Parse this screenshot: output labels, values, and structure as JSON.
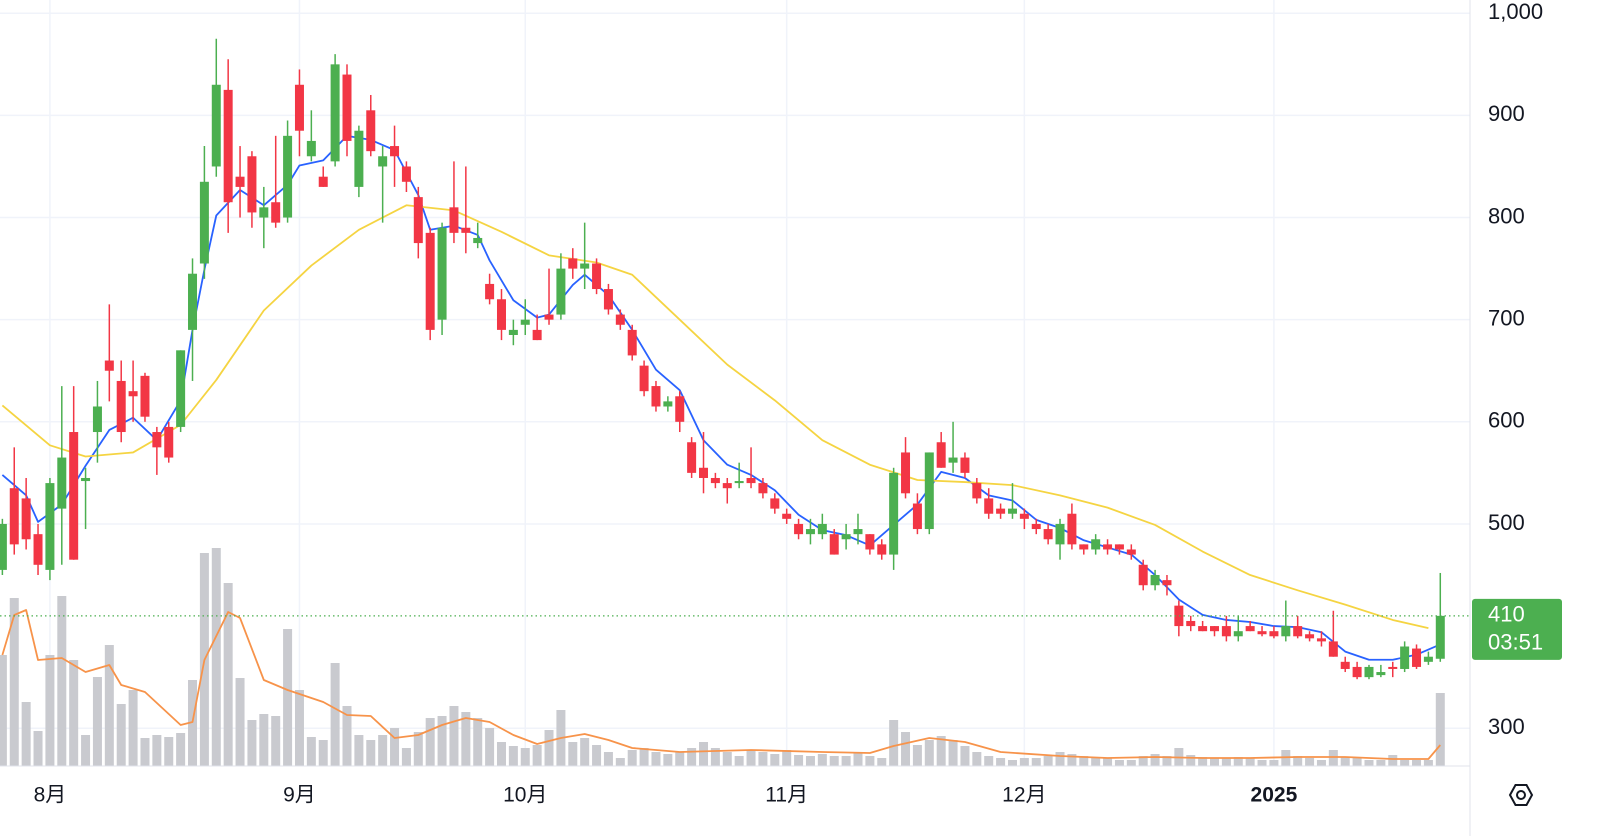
{
  "chart_data": {
    "type": "candlestick",
    "xlim": [
      -0.2,
      123.5
    ],
    "ylim": [
      263,
      1013
    ],
    "yticks": [
      300,
      500,
      600,
      700,
      800,
      900,
      {
        "value": 1000,
        "label": "1,000"
      }
    ],
    "xticks": [
      {
        "value": 4,
        "label": "8月"
      },
      {
        "value": 25,
        "label": "9月"
      },
      {
        "value": 44,
        "label": "10月"
      },
      {
        "value": 66,
        "label": "11月"
      },
      {
        "value": 86,
        "label": "12月"
      },
      {
        "value": 107,
        "label": "2025",
        "bold": true
      }
    ],
    "grid": true,
    "up_color": "#4caf50",
    "down_color": "#f23645",
    "open": [
      455,
      535,
      525,
      490,
      455,
      515,
      590,
      542,
      590,
      660,
      640,
      630,
      645,
      590,
      595,
      595,
      690,
      755,
      850,
      925,
      840,
      860,
      800,
      815,
      800,
      930,
      860,
      840,
      855,
      940,
      830,
      905,
      850,
      870,
      850,
      820,
      785,
      700,
      810,
      790,
      775,
      735,
      720,
      685,
      695,
      690,
      705,
      705,
      760,
      750,
      755,
      730,
      705,
      690,
      655,
      635,
      615,
      625,
      580,
      555,
      545,
      540,
      540,
      545,
      540,
      525,
      510,
      500,
      490,
      490,
      490,
      485,
      490,
      490,
      480,
      470,
      570,
      520,
      495,
      580,
      560,
      565,
      540,
      525,
      515,
      510,
      510,
      500,
      495,
      480,
      510,
      480,
      475,
      480,
      480,
      475,
      460,
      440,
      445,
      420,
      405,
      400,
      400,
      400,
      390,
      400,
      395,
      395,
      390,
      400,
      392,
      388,
      385,
      365,
      360,
      350,
      352,
      360,
      358,
      378,
      365,
      368
    ],
    "high": [
      505,
      575,
      545,
      500,
      545,
      635,
      635,
      555,
      640,
      715,
      660,
      660,
      648,
      595,
      600,
      670,
      760,
      870,
      975,
      955,
      870,
      865,
      830,
      880,
      895,
      945,
      905,
      850,
      960,
      950,
      890,
      920,
      870,
      890,
      855,
      830,
      790,
      795,
      855,
      850,
      795,
      745,
      730,
      700,
      720,
      705,
      750,
      765,
      770,
      795,
      760,
      735,
      710,
      695,
      660,
      640,
      625,
      630,
      585,
      590,
      550,
      545,
      560,
      575,
      545,
      530,
      515,
      505,
      505,
      510,
      495,
      500,
      510,
      490,
      485,
      555,
      585,
      530,
      570,
      590,
      600,
      570,
      545,
      535,
      520,
      540,
      515,
      505,
      500,
      505,
      520,
      480,
      490,
      485,
      480,
      480,
      465,
      455,
      450,
      425,
      410,
      405,
      400,
      410,
      410,
      405,
      400,
      400,
      425,
      410,
      395,
      395,
      415,
      370,
      365,
      362,
      362,
      365,
      385,
      382,
      375,
      452
    ],
    "low": [
      450,
      470,
      475,
      450,
      445,
      460,
      465,
      495,
      560,
      620,
      580,
      600,
      600,
      548,
      560,
      590,
      640,
      740,
      840,
      785,
      800,
      790,
      770,
      790,
      795,
      860,
      855,
      830,
      850,
      860,
      820,
      860,
      795,
      830,
      825,
      760,
      680,
      685,
      775,
      765,
      770,
      715,
      680,
      675,
      685,
      680,
      695,
      700,
      740,
      730,
      725,
      705,
      690,
      660,
      625,
      610,
      610,
      590,
      545,
      530,
      535,
      520,
      535,
      535,
      525,
      510,
      500,
      485,
      480,
      485,
      470,
      475,
      480,
      470,
      465,
      455,
      525,
      490,
      490,
      555,
      550,
      545,
      520,
      505,
      505,
      505,
      495,
      490,
      480,
      465,
      475,
      470,
      470,
      470,
      470,
      465,
      435,
      435,
      430,
      390,
      395,
      395,
      390,
      385,
      385,
      395,
      390,
      388,
      385,
      388,
      385,
      380,
      370,
      355,
      348,
      348,
      350,
      350,
      355,
      358,
      362,
      365
    ],
    "close": [
      500,
      480,
      485,
      460,
      540,
      565,
      465,
      545,
      615,
      650,
      590,
      625,
      605,
      575,
      565,
      670,
      745,
      835,
      930,
      815,
      830,
      805,
      810,
      795,
      880,
      885,
      875,
      830,
      950,
      875,
      885,
      865,
      860,
      860,
      835,
      775,
      690,
      790,
      785,
      785,
      780,
      720,
      690,
      690,
      700,
      680,
      700,
      750,
      750,
      755,
      730,
      710,
      695,
      665,
      630,
      615,
      620,
      600,
      550,
      545,
      540,
      535,
      542,
      540,
      530,
      515,
      505,
      490,
      495,
      500,
      470,
      490,
      495,
      475,
      470,
      550,
      530,
      495,
      570,
      555,
      565,
      550,
      525,
      510,
      510,
      515,
      505,
      495,
      485,
      500,
      480,
      475,
      485,
      475,
      475,
      470,
      440,
      450,
      440,
      400,
      400,
      395,
      395,
      390,
      395,
      395,
      392,
      390,
      400,
      390,
      388,
      385,
      370,
      358,
      350,
      360,
      355,
      358,
      380,
      360,
      370,
      410
    ],
    "volume": [
      111,
      168,
      64,
      35,
      111,
      170,
      106,
      31,
      89,
      121,
      62,
      76,
      28,
      31,
      29,
      33,
      86,
      213,
      218,
      183,
      88,
      46,
      52,
      50,
      137,
      76,
      29,
      26,
      103,
      60,
      31,
      26,
      31,
      38,
      18,
      34,
      48,
      50,
      60,
      54,
      48,
      38,
      24,
      20,
      18,
      21,
      36,
      56,
      24,
      28,
      21,
      14,
      8,
      16,
      18,
      14,
      12,
      14,
      18,
      24,
      18,
      14,
      10,
      16,
      14,
      12,
      16,
      11,
      10,
      12,
      10,
      10,
      14,
      10,
      8,
      46,
      34,
      21,
      26,
      30,
      26,
      20,
      14,
      10,
      8,
      6,
      8,
      8,
      10,
      14,
      12,
      10,
      8,
      8,
      6,
      6,
      10,
      12,
      10,
      18,
      11,
      9,
      8,
      8,
      9,
      8,
      6,
      6,
      16,
      10,
      8,
      6,
      16,
      9,
      8,
      6,
      6,
      11,
      6,
      6,
      6,
      73
    ],
    "volume_ylim": [
      0,
      250
    ],
    "volume_color": "#c9cacf",
    "lines": [
      {
        "color": "#2962ff",
        "x": [
          0,
          2,
          3,
          5,
          7,
          9,
          11,
          13,
          15,
          16,
          17,
          18,
          20,
          22,
          24,
          25,
          27,
          29,
          31,
          33,
          35,
          36,
          38,
          40,
          41,
          43,
          45,
          46,
          48,
          49,
          51,
          53,
          55,
          57,
          59,
          61,
          63,
          65,
          67,
          69,
          71,
          73,
          75,
          77,
          79,
          81,
          83,
          85,
          87,
          89,
          91,
          93,
          95,
          97,
          99,
          101,
          103,
          105,
          107,
          109,
          111,
          113,
          115,
          117,
          119,
          121
        ],
        "values": [
          548,
          528,
          502,
          519,
          557,
          592,
          604,
          582,
          621,
          690,
          749,
          802,
          827,
          812,
          832,
          851,
          856,
          880,
          876,
          866,
          822,
          788,
          792,
          783,
          758,
          719,
          702,
          705,
          734,
          744,
          724,
          690,
          651,
          631,
          582,
          558,
          548,
          533,
          509,
          494,
          489,
          479,
          499,
          519,
          551,
          545,
          528,
          523,
          504,
          496,
          484,
          477,
          470,
          450,
          426,
          411,
          406,
          404,
          400,
          399,
          394,
          375,
          367,
          367,
          372,
          382
        ]
      },
      {
        "color": "#f5d442",
        "x": [
          0,
          4,
          7,
          11,
          15,
          18,
          22,
          26,
          30,
          34,
          38,
          42,
          46,
          50,
          53,
          57,
          61,
          65,
          69,
          73,
          77,
          81,
          85,
          89,
          93,
          97,
          101,
          105,
          109,
          113,
          117,
          120
        ],
        "values": [
          616,
          577,
          566,
          570,
          597,
          641,
          709,
          753,
          788,
          812,
          807,
          786,
          763,
          756,
          744,
          700,
          656,
          621,
          582,
          558,
          543,
          541,
          538,
          528,
          516,
          499,
          473,
          450,
          435,
          421,
          406,
          398
        ]
      }
    ],
    "volume_line": {
      "color": "#f7934a",
      "x": [
        0,
        1,
        2,
        3,
        5,
        7,
        9,
        10,
        12,
        15,
        16,
        17,
        19,
        20,
        22,
        24,
        27,
        29,
        31,
        33,
        35,
        37,
        39,
        41,
        43,
        45,
        47,
        49,
        51,
        53,
        57,
        63,
        69,
        73,
        75,
        78,
        81,
        84,
        89,
        93,
        97,
        101,
        105,
        109,
        113,
        117,
        120,
        121
      ],
      "values": [
        111,
        151,
        156,
        106,
        108,
        94,
        101,
        81,
        74,
        41,
        44,
        106,
        154,
        148,
        86,
        76,
        64,
        51,
        50,
        28,
        31,
        41,
        48,
        44,
        31,
        22,
        28,
        32,
        26,
        18,
        14,
        16,
        14,
        13,
        20,
        28,
        24,
        14,
        10,
        8,
        9,
        8,
        8,
        9,
        9,
        7,
        7,
        21
      ]
    },
    "price_tag": {
      "value": 410,
      "countdown": "03:51",
      "color": "#4caf50"
    }
  }
}
